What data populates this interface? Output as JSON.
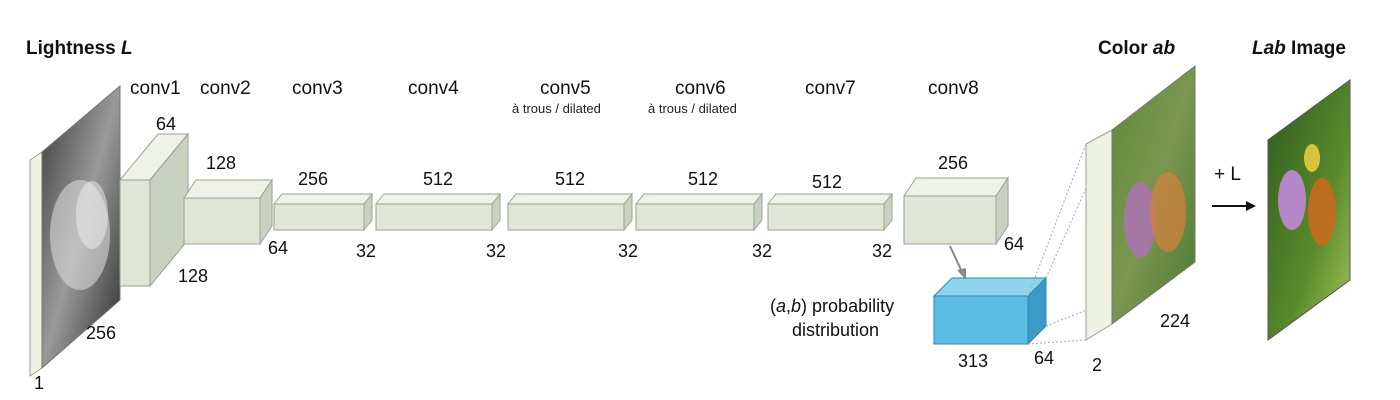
{
  "input": {
    "title_text": "Lightness ",
    "title_var": "L",
    "width": "256",
    "height": "1"
  },
  "output_ab": {
    "title_text": "Color ",
    "title_var": "ab",
    "width": "224",
    "depth": "2"
  },
  "output_lab": {
    "title_var": "Lab",
    "title_text": " Image",
    "plus_label": "+ L"
  },
  "prob": {
    "label_line1_pre": "(",
    "label_a": "a",
    "label_comma": ",",
    "label_b": "b",
    "label_line1_post": ") probability",
    "label_line2": "distribution",
    "dim_w": "313",
    "dim_d": "64"
  },
  "layers": [
    {
      "name": "conv1",
      "note": "",
      "channels": "64",
      "spatial": "128"
    },
    {
      "name": "conv2",
      "note": "",
      "channels": "128",
      "spatial": "64"
    },
    {
      "name": "conv3",
      "note": "",
      "channels": "256",
      "spatial": "32"
    },
    {
      "name": "conv4",
      "note": "",
      "channels": "512",
      "spatial": "32"
    },
    {
      "name": "conv5",
      "note": "à trous / dilated",
      "channels": "512",
      "spatial": "32"
    },
    {
      "name": "conv6",
      "note": "à trous / dilated",
      "channels": "512",
      "spatial": "32"
    },
    {
      "name": "conv7",
      "note": "",
      "channels": "512",
      "spatial": "32"
    },
    {
      "name": "conv8",
      "note": "",
      "channels": "256",
      "spatial": "64"
    }
  ],
  "colors": {
    "block_face": "#dfe6d6",
    "block_side": "#c9d1c0",
    "block_top": "#eef2e8",
    "block_edge": "#9aa293",
    "prob_face": "#5bbde3",
    "prob_top": "#8fd3ee",
    "prob_side": "#3a9cc6"
  }
}
